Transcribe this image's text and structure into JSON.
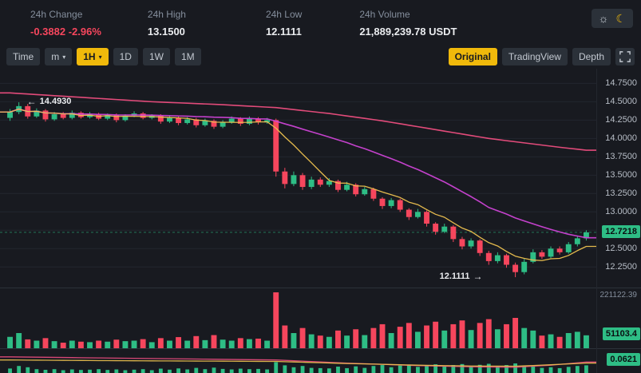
{
  "colors": {
    "up": "#2EBD85",
    "down": "#F6465D",
    "accent": "#F0B90B",
    "ma_fast": "#EFC350",
    "ma_mid": "#CE43D6",
    "ma_slow": "#ED4E7F",
    "grid": "#22262E"
  },
  "ui": {
    "caret": "▾",
    "arrow_left": "←",
    "arrow_right": "→",
    "sun": "☼",
    "moon": "☾"
  },
  "header": {
    "stats": [
      {
        "label": "24h Change",
        "value": "-0.3882 -2.96%"
      },
      {
        "label": "24h High",
        "value": "13.1500"
      },
      {
        "label": "24h Low",
        "value": "12.1111"
      },
      {
        "label": "24h Volume",
        "value": "21,889,239.78 USDT"
      }
    ]
  },
  "toolbar": {
    "left": [
      {
        "label": "Time",
        "caret": false,
        "active": false
      },
      {
        "label": "m",
        "caret": true,
        "active": false
      },
      {
        "label": "1H",
        "caret": true,
        "active": true
      },
      {
        "label": "1D",
        "caret": false,
        "active": false
      },
      {
        "label": "1W",
        "caret": false,
        "active": false
      },
      {
        "label": "1M",
        "caret": false,
        "active": false
      }
    ],
    "right": [
      {
        "label": "Original",
        "active": true
      },
      {
        "label": "TradingView",
        "active": false
      },
      {
        "label": "Depth",
        "active": false
      }
    ]
  },
  "chart_data": {
    "type": "candlestick",
    "timeframe": "1H",
    "price_axis": {
      "min": 11.97,
      "max": 14.95,
      "ticks": [
        "14.7500",
        "14.5000",
        "14.2500",
        "14.0000",
        "13.7500",
        "13.5000",
        "13.2500",
        "13.0000",
        "12.7500",
        "12.5000",
        "12.2500"
      ]
    },
    "last_price": "12.7218",
    "high_annotation": "14.4930",
    "low_annotation": "12.1111",
    "volume_axis_max_label": "221122.39",
    "volume_axis_max": 221122.39,
    "volume_last": "51103.4",
    "candles": [
      [
        14.28,
        14.4,
        14.24,
        14.36
      ],
      [
        14.36,
        14.493,
        14.33,
        14.44
      ],
      [
        14.44,
        14.47,
        14.27,
        14.3
      ],
      [
        14.3,
        14.41,
        14.28,
        14.38
      ],
      [
        14.38,
        14.4,
        14.23,
        14.26
      ],
      [
        14.26,
        14.36,
        14.24,
        14.33
      ],
      [
        14.33,
        14.36,
        14.26,
        14.28
      ],
      [
        14.28,
        14.38,
        14.26,
        14.35
      ],
      [
        14.35,
        14.37,
        14.27,
        14.29
      ],
      [
        14.29,
        14.36,
        14.27,
        14.33
      ],
      [
        14.33,
        14.35,
        14.25,
        14.27
      ],
      [
        14.27,
        14.34,
        14.25,
        14.32
      ],
      [
        14.32,
        14.34,
        14.22,
        14.25
      ],
      [
        14.25,
        14.33,
        14.23,
        14.31
      ],
      [
        14.31,
        14.37,
        14.29,
        14.34
      ],
      [
        14.34,
        14.36,
        14.26,
        14.28
      ],
      [
        14.28,
        14.33,
        14.26,
        14.31
      ],
      [
        14.31,
        14.33,
        14.2,
        14.23
      ],
      [
        14.23,
        14.31,
        14.21,
        14.28
      ],
      [
        14.28,
        14.3,
        14.18,
        14.21
      ],
      [
        14.21,
        14.29,
        14.19,
        14.26
      ],
      [
        14.26,
        14.28,
        14.15,
        14.18
      ],
      [
        14.18,
        14.27,
        14.16,
        14.24
      ],
      [
        14.24,
        14.26,
        14.13,
        14.16
      ],
      [
        14.16,
        14.25,
        14.14,
        14.22
      ],
      [
        14.22,
        14.3,
        14.2,
        14.27
      ],
      [
        14.27,
        14.29,
        14.17,
        14.2
      ],
      [
        14.2,
        14.3,
        14.18,
        14.27
      ],
      [
        14.27,
        14.29,
        14.19,
        14.22
      ],
      [
        14.22,
        14.28,
        14.2,
        14.25
      ],
      [
        14.25,
        14.27,
        13.48,
        13.55
      ],
      [
        13.55,
        13.6,
        13.32,
        13.38
      ],
      [
        13.38,
        13.55,
        13.35,
        13.5
      ],
      [
        13.5,
        13.53,
        13.3,
        13.34
      ],
      [
        13.34,
        13.48,
        13.31,
        13.44
      ],
      [
        13.44,
        13.47,
        13.34,
        13.37
      ],
      [
        13.37,
        13.46,
        13.34,
        13.42
      ],
      [
        13.42,
        13.44,
        13.27,
        13.3
      ],
      [
        13.3,
        13.41,
        13.28,
        13.37
      ],
      [
        13.37,
        13.39,
        13.21,
        13.24
      ],
      [
        13.24,
        13.34,
        13.22,
        13.31
      ],
      [
        13.31,
        13.33,
        13.15,
        13.18
      ],
      [
        13.18,
        13.2,
        13.04,
        13.08
      ],
      [
        13.08,
        13.19,
        13.05,
        13.16
      ],
      [
        13.16,
        13.18,
        13.0,
        13.03
      ],
      [
        13.03,
        13.05,
        12.89,
        12.93
      ],
      [
        12.93,
        13.04,
        12.91,
        13.0
      ],
      [
        13.0,
        13.02,
        12.8,
        12.84
      ],
      [
        12.84,
        12.86,
        12.69,
        12.73
      ],
      [
        12.73,
        12.84,
        12.71,
        12.8
      ],
      [
        12.8,
        12.82,
        12.59,
        12.63
      ],
      [
        12.63,
        12.66,
        12.49,
        12.53
      ],
      [
        12.53,
        12.64,
        12.5,
        12.61
      ],
      [
        12.61,
        12.63,
        12.4,
        12.44
      ],
      [
        12.44,
        12.47,
        12.28,
        12.33
      ],
      [
        12.33,
        12.45,
        12.3,
        12.41
      ],
      [
        12.41,
        12.43,
        12.24,
        12.28
      ],
      [
        12.28,
        12.31,
        12.1111,
        12.18
      ],
      [
        12.18,
        12.36,
        12.15,
        12.32
      ],
      [
        12.32,
        12.49,
        12.3,
        12.45
      ],
      [
        12.45,
        12.48,
        12.36,
        12.39
      ],
      [
        12.39,
        12.53,
        12.37,
        12.5
      ],
      [
        12.5,
        12.53,
        12.42,
        12.45
      ],
      [
        12.45,
        12.59,
        12.43,
        12.56
      ],
      [
        12.56,
        12.67,
        12.53,
        12.64
      ],
      [
        12.64,
        12.75,
        12.61,
        12.7218
      ]
    ],
    "volumes": [
      45000,
      60000,
      35000,
      30000,
      40000,
      28000,
      22000,
      30000,
      26000,
      24000,
      30000,
      26000,
      34000,
      28000,
      30000,
      36000,
      24000,
      40000,
      30000,
      44000,
      30000,
      48000,
      32000,
      52000,
      34000,
      30000,
      40000,
      36000,
      38000,
      30000,
      221122,
      90000,
      60000,
      80000,
      55000,
      50000,
      45000,
      70000,
      50000,
      75000,
      52000,
      80000,
      95000,
      60000,
      85000,
      100000,
      65000,
      90000,
      105000,
      70000,
      95000,
      110000,
      72000,
      100000,
      115000,
      75000,
      95000,
      120000,
      80000,
      70000,
      50000,
      55000,
      45000,
      60000,
      65000,
      51103
    ],
    "ma_slow_points": [
      [
        0,
        14.62
      ],
      [
        8,
        14.56
      ],
      [
        16,
        14.5
      ],
      [
        24,
        14.46
      ],
      [
        30,
        14.42
      ],
      [
        36,
        14.34
      ],
      [
        42,
        14.24
      ],
      [
        48,
        14.12
      ],
      [
        54,
        14.0
      ],
      [
        58,
        13.94
      ],
      [
        62,
        13.88
      ],
      [
        65,
        13.84
      ]
    ],
    "indicator": {
      "value": "0.0621",
      "bars": [
        0.35,
        0.55,
        0.45,
        0.3,
        0.25,
        0.3,
        0.22,
        0.28,
        0.24,
        0.26,
        0.3,
        0.24,
        0.28,
        0.22,
        0.26,
        0.3,
        0.22,
        0.34,
        0.26,
        0.36,
        0.28,
        0.4,
        0.3,
        0.42,
        0.32,
        0.28,
        0.34,
        0.3,
        0.32,
        0.28,
        0.85,
        0.6,
        0.45,
        0.55,
        0.4,
        0.38,
        0.36,
        0.5,
        0.38,
        0.52,
        0.4,
        0.55,
        0.62,
        0.45,
        0.58,
        0.65,
        0.48,
        0.6,
        0.68,
        0.5,
        0.62,
        0.7,
        0.52,
        0.64,
        0.72,
        0.54,
        0.62,
        0.75,
        0.55,
        0.5,
        0.4,
        0.45,
        0.38,
        0.48,
        0.55,
        0.6
      ],
      "line_pink": [
        [
          0,
          0.3
        ],
        [
          10,
          0.35
        ],
        [
          20,
          0.4
        ],
        [
          30,
          0.45
        ],
        [
          38,
          0.6
        ],
        [
          46,
          0.72
        ],
        [
          52,
          0.78
        ],
        [
          57,
          0.8
        ],
        [
          61,
          0.7
        ],
        [
          65,
          0.55
        ]
      ],
      "line_yellow": [
        [
          0,
          0.45
        ],
        [
          10,
          0.48
        ],
        [
          20,
          0.5
        ],
        [
          30,
          0.52
        ],
        [
          38,
          0.62
        ],
        [
          46,
          0.7
        ],
        [
          52,
          0.74
        ],
        [
          57,
          0.75
        ],
        [
          61,
          0.68
        ],
        [
          65,
          0.6
        ]
      ]
    }
  }
}
